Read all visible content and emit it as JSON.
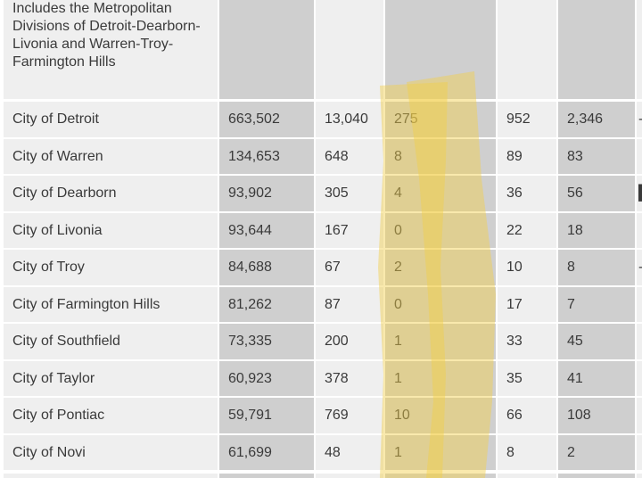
{
  "table": {
    "header_text": "Includes the Metropolitan Divisions of Detroit-Dearborn-Livonia and Warren-Troy-Farmington Hills",
    "rows": [
      {
        "name": "City of Detroit",
        "values": [
          "663,502",
          "13,040",
          "275",
          "952",
          "2,346"
        ],
        "trail": "-"
      },
      {
        "name": "City of Warren",
        "values": [
          "134,653",
          "648",
          "8",
          "89",
          "83"
        ],
        "trail": ""
      },
      {
        "name": "City of Dearborn",
        "values": [
          "93,902",
          "305",
          "4",
          "36",
          "56"
        ],
        "trail": "▌"
      },
      {
        "name": "City of Livonia",
        "values": [
          "93,644",
          "167",
          "0",
          "22",
          "18"
        ],
        "trail": ""
      },
      {
        "name": "City of Troy",
        "values": [
          "84,688",
          "67",
          "2",
          "10",
          "8"
        ],
        "trail": "-"
      },
      {
        "name": "City of Farmington Hills",
        "values": [
          "81,262",
          "87",
          "0",
          "17",
          "7"
        ],
        "trail": ""
      },
      {
        "name": "City of Southfield",
        "values": [
          "73,335",
          "200",
          "1",
          "33",
          "45"
        ],
        "trail": ""
      },
      {
        "name": "City of Taylor",
        "values": [
          "60,923",
          "378",
          "1",
          "35",
          "41"
        ],
        "trail": ""
      },
      {
        "name": "City of Pontiac",
        "values": [
          "59,791",
          "769",
          "10",
          "66",
          "108"
        ],
        "trail": ""
      },
      {
        "name": "City of Novi",
        "values": [
          "61,699",
          "48",
          "1",
          "8",
          "2"
        ],
        "trail": ""
      }
    ]
  },
  "colors": {
    "cell_light": "#efefef",
    "cell_dark": "#cfcfcf",
    "text": "#3a3a3a",
    "highlight": "#f2cf4a"
  }
}
